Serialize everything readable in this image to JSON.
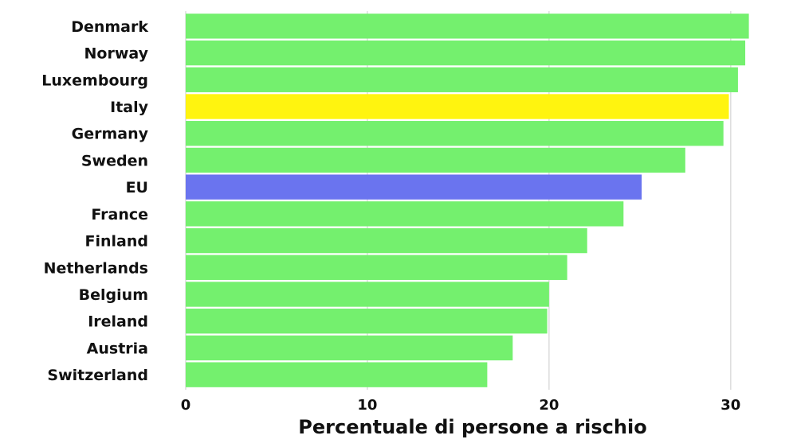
{
  "chart_data": {
    "type": "bar",
    "orientation": "horizontal",
    "categories": [
      "Denmark",
      "Norway",
      "Luxembourg",
      "Italy",
      "Germany",
      "Sweden",
      "EU",
      "France",
      "Finland",
      "Netherlands",
      "Belgium",
      "Ireland",
      "Austria",
      "Switzerland"
    ],
    "values": [
      31.0,
      30.8,
      30.4,
      29.9,
      29.6,
      27.5,
      25.1,
      24.1,
      22.1,
      21.0,
      20.0,
      19.9,
      18.0,
      16.6
    ],
    "colors": [
      "#74f06e",
      "#74f06e",
      "#74f06e",
      "#fff40f",
      "#74f06e",
      "#74f06e",
      "#6a74ef",
      "#74f06e",
      "#74f06e",
      "#74f06e",
      "#74f06e",
      "#74f06e",
      "#74f06e",
      "#74f06e"
    ],
    "xlabel": "Percentuale di persone a rischio",
    "ylabel": "",
    "xlim": [
      0,
      31.5
    ],
    "xticks": [
      0,
      10,
      20,
      30
    ],
    "grid": "vertical"
  }
}
